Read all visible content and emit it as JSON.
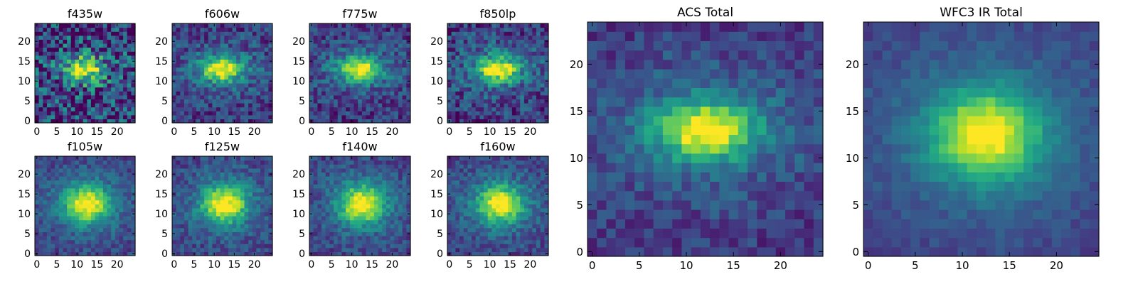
{
  "colormap": "viridis",
  "chart_data": [
    {
      "type": "heatmap",
      "title": "f435w",
      "noise": 0.34,
      "xlim": [
        -0.5,
        24.5
      ],
      "ylim": [
        -0.5,
        24.5
      ],
      "xticks": [
        0,
        5,
        10,
        15,
        20
      ],
      "yticks": [
        0,
        5,
        10,
        15,
        20
      ],
      "peak_center": [
        12,
        13
      ],
      "peak_size": [
        3.0,
        1.9
      ],
      "image_size": [
        25,
        25
      ]
    },
    {
      "type": "heatmap",
      "title": "f606w",
      "noise": 0.18,
      "xlim": [
        -0.5,
        24.5
      ],
      "ylim": [
        -0.5,
        24.5
      ],
      "xticks": [
        0,
        5,
        10,
        15,
        20
      ],
      "yticks": [
        0,
        5,
        10,
        15,
        20
      ],
      "peak_center": [
        12,
        13
      ],
      "peak_size": [
        3.4,
        2.0
      ],
      "image_size": [
        25,
        25
      ]
    },
    {
      "type": "heatmap",
      "title": "f775w",
      "noise": 0.17,
      "xlim": [
        -0.5,
        24.5
      ],
      "ylim": [
        -0.5,
        24.5
      ],
      "xticks": [
        0,
        5,
        10,
        15,
        20
      ],
      "yticks": [
        0,
        5,
        10,
        15,
        20
      ],
      "peak_center": [
        12,
        13
      ],
      "peak_size": [
        3.4,
        2.0
      ],
      "image_size": [
        25,
        25
      ]
    },
    {
      "type": "heatmap",
      "title": "f850lp",
      "noise": 0.2,
      "xlim": [
        -0.5,
        24.5
      ],
      "ylim": [
        -0.5,
        24.5
      ],
      "xticks": [
        0,
        5,
        10,
        15,
        20
      ],
      "yticks": [
        0,
        5,
        10,
        15,
        20
      ],
      "peak_center": [
        12,
        13
      ],
      "peak_size": [
        3.4,
        2.2
      ],
      "image_size": [
        25,
        25
      ]
    },
    {
      "type": "heatmap",
      "title": "f105w",
      "noise": 0.12,
      "xlim": [
        -0.5,
        24.5
      ],
      "ylim": [
        -0.5,
        24.5
      ],
      "xticks": [
        0,
        5,
        10,
        15,
        20
      ],
      "yticks": [
        0,
        5,
        10,
        15,
        20
      ],
      "peak_center": [
        12.5,
        12.5
      ],
      "peak_size": [
        3.8,
        3.2
      ],
      "image_size": [
        25,
        25
      ]
    },
    {
      "type": "heatmap",
      "title": "f125w",
      "noise": 0.13,
      "xlim": [
        -0.5,
        24.5
      ],
      "ylim": [
        -0.5,
        24.5
      ],
      "xticks": [
        0,
        5,
        10,
        15,
        20
      ],
      "yticks": [
        0,
        5,
        10,
        15,
        20
      ],
      "peak_center": [
        12.5,
        12.5
      ],
      "peak_size": [
        3.8,
        3.2
      ],
      "image_size": [
        25,
        25
      ]
    },
    {
      "type": "heatmap",
      "title": "f140w",
      "noise": 0.13,
      "xlim": [
        -0.5,
        24.5
      ],
      "ylim": [
        -0.5,
        24.5
      ],
      "xticks": [
        0,
        5,
        10,
        15,
        20
      ],
      "yticks": [
        0,
        5,
        10,
        15,
        20
      ],
      "peak_center": [
        12.5,
        12.5
      ],
      "peak_size": [
        3.8,
        3.2
      ],
      "image_size": [
        25,
        25
      ]
    },
    {
      "type": "heatmap",
      "title": "f160w",
      "noise": 0.13,
      "xlim": [
        -0.5,
        24.5
      ],
      "ylim": [
        -0.5,
        24.5
      ],
      "xticks": [
        0,
        5,
        10,
        15,
        20
      ],
      "yticks": [
        0,
        5,
        10,
        15,
        20
      ],
      "peak_center": [
        12.5,
        12.5
      ],
      "peak_size": [
        3.8,
        3.1
      ],
      "image_size": [
        25,
        25
      ]
    },
    {
      "type": "heatmap",
      "title": "ACS Total",
      "noise": 0.12,
      "xlim": [
        -0.5,
        24.5
      ],
      "ylim": [
        -0.5,
        24.5
      ],
      "xticks": [
        0,
        5,
        10,
        15,
        20
      ],
      "yticks": [
        0,
        5,
        10,
        15,
        20
      ],
      "peak_center": [
        12,
        13
      ],
      "peak_size": [
        3.5,
        2.1
      ],
      "image_size": [
        25,
        25
      ]
    },
    {
      "type": "heatmap",
      "title": "WFC3 IR Total",
      "noise": 0.06,
      "xlim": [
        -0.5,
        24.5
      ],
      "ylim": [
        -0.5,
        24.5
      ],
      "xticks": [
        0,
        5,
        10,
        15,
        20
      ],
      "yticks": [
        0,
        5,
        10,
        15,
        20
      ],
      "peak_center": [
        12.5,
        12.5
      ],
      "peak_size": [
        3.9,
        3.2
      ],
      "image_size": [
        25,
        25
      ]
    }
  ]
}
